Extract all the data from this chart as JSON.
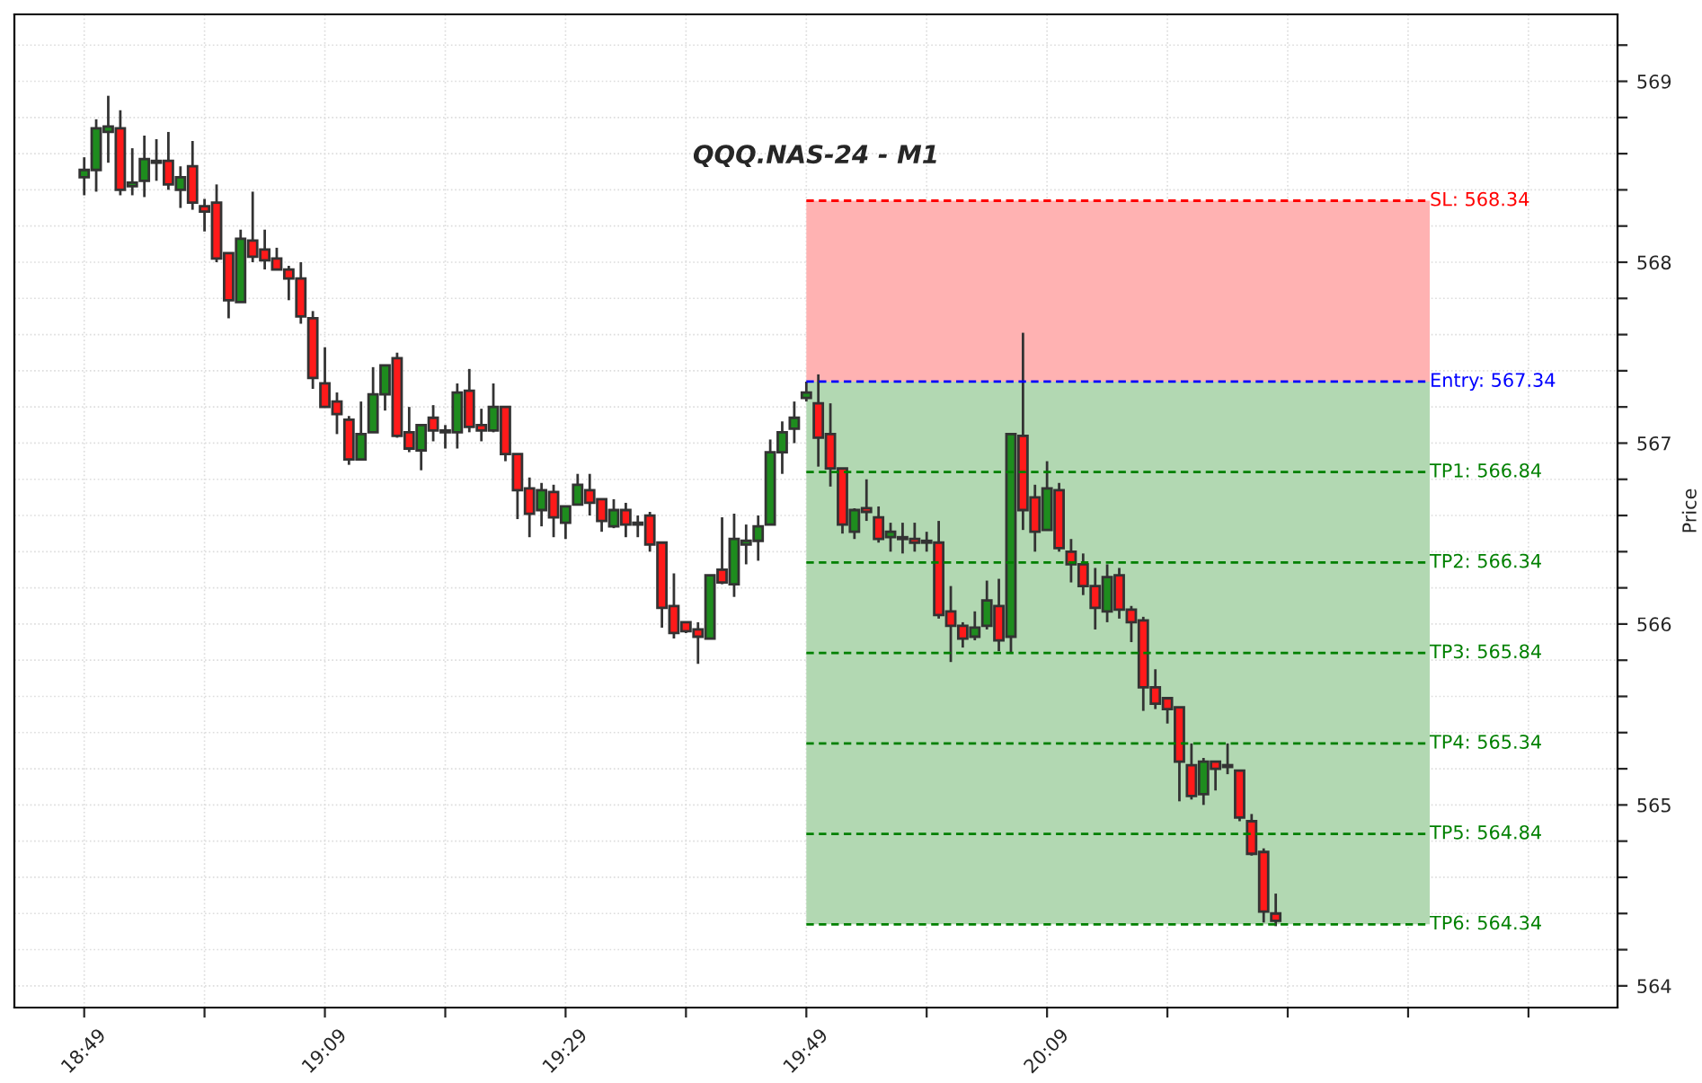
{
  "chart_data": {
    "type": "candlestick",
    "title": "QQQ.NAS-24 - M1",
    "ylabel": "Price",
    "xlim": [
      18.72,
      20.94
    ],
    "ylim": [
      563.88,
      569.37
    ],
    "xticks": [
      {
        "value": 18.8167,
        "label": "18:49"
      },
      {
        "value": 18.9833,
        "label": null
      },
      {
        "value": 19.15,
        "label": "19:09"
      },
      {
        "value": 19.3167,
        "label": null
      },
      {
        "value": 19.4833,
        "label": "19:29"
      },
      {
        "value": 19.65,
        "label": null
      },
      {
        "value": 19.8167,
        "label": "19:49"
      },
      {
        "value": 19.9833,
        "label": null
      },
      {
        "value": 20.15,
        "label": "20:09"
      },
      {
        "value": 20.3167,
        "label": null
      },
      {
        "value": 20.4833,
        "label": null
      },
      {
        "value": 20.65,
        "label": null
      },
      {
        "value": 20.8167,
        "label": null
      }
    ],
    "yticks": [
      564,
      {
        "value": 564.2,
        "label": null
      },
      {
        "value": 564.4,
        "label": null
      },
      {
        "value": 564.6,
        "label": null
      },
      {
        "value": 564.8,
        "label": null
      },
      565,
      {
        "value": 565.2,
        "label": null
      },
      {
        "value": 565.4,
        "label": null
      },
      {
        "value": 565.6,
        "label": null
      },
      {
        "value": 565.8,
        "label": null
      },
      566,
      {
        "value": 566.2,
        "label": null
      },
      {
        "value": 566.4,
        "label": null
      },
      {
        "value": 566.6,
        "label": null
      },
      {
        "value": 566.8,
        "label": null
      },
      567,
      {
        "value": 567.2,
        "label": null
      },
      {
        "value": 567.4,
        "label": null
      },
      {
        "value": 567.6,
        "label": null
      },
      {
        "value": 567.8,
        "label": null
      },
      568,
      {
        "value": 568.2,
        "label": null
      },
      {
        "value": 568.4,
        "label": null
      },
      {
        "value": 568.6,
        "label": null
      },
      {
        "value": 568.8,
        "label": null
      },
      569,
      {
        "value": 569.2,
        "label": null
      }
    ],
    "grid": true,
    "bands": [
      {
        "axis": "y",
        "from": 567.34,
        "to": 568.34,
        "color": "#ffb2b2"
      },
      {
        "axis": "y",
        "from": 564.34,
        "to": 567.34,
        "color": "#b2d8b2"
      }
    ],
    "series": [
      {
        "color": "#1e8c1e",
        "x": [
          18.8167,
          18.8333,
          18.85,
          18.8833,
          18.9,
          18.9167,
          18.95,
          19.0333,
          19.2,
          19.2167,
          19.2333,
          19.2833,
          19.3167,
          19.3333,
          19.3833,
          19.45,
          19.4833,
          19.5,
          19.55,
          19.6833,
          19.7167,
          19.7333,
          19.75,
          19.7667,
          19.7833,
          19.8,
          19.8167,
          19.8833,
          19.9333,
          20.05,
          20.0667,
          20.1,
          20.15,
          20.2333,
          20.3667
        ],
        "ohlc": [
          [
            568.47,
            568.58,
            568.37,
            568.51
          ],
          [
            568.51,
            568.79,
            568.39,
            568.74
          ],
          [
            568.72,
            568.92,
            568.55,
            568.75
          ],
          [
            568.42,
            568.63,
            568.37,
            568.44
          ],
          [
            568.45,
            568.7,
            568.36,
            568.57
          ],
          [
            568.55,
            568.68,
            568.45,
            568.56
          ],
          [
            568.4,
            568.53,
            568.3,
            568.47
          ],
          [
            567.78,
            568.18,
            567.78,
            568.13
          ],
          [
            566.91,
            567.23,
            566.91,
            567.05
          ],
          [
            567.06,
            567.42,
            567.06,
            567.27
          ],
          [
            567.27,
            567.43,
            567.18,
            567.43
          ],
          [
            566.96,
            567.1,
            566.85,
            567.1
          ],
          [
            567.06,
            567.1,
            566.97,
            567.07
          ],
          [
            567.06,
            567.33,
            566.97,
            567.28
          ],
          [
            567.07,
            567.33,
            567.06,
            567.2
          ],
          [
            566.63,
            566.78,
            566.54,
            566.74
          ],
          [
            566.56,
            566.65,
            566.47,
            566.65
          ],
          [
            566.66,
            566.83,
            566.66,
            566.77
          ],
          [
            566.54,
            566.69,
            566.53,
            566.63
          ],
          [
            565.92,
            566.27,
            565.92,
            566.27
          ],
          [
            566.22,
            566.61,
            566.15,
            566.47
          ],
          [
            566.44,
            566.55,
            566.33,
            566.46
          ],
          [
            566.46,
            566.6,
            566.35,
            566.54
          ],
          [
            566.55,
            567.02,
            566.55,
            566.95
          ],
          [
            566.95,
            567.12,
            566.83,
            567.06
          ],
          [
            567.08,
            567.23,
            567.0,
            567.14
          ],
          [
            567.25,
            567.34,
            567.23,
            567.28
          ],
          [
            566.51,
            566.64,
            566.47,
            566.63
          ],
          [
            566.48,
            566.56,
            566.4,
            566.51
          ],
          [
            565.93,
            566.07,
            565.91,
            565.98
          ],
          [
            565.99,
            566.24,
            565.97,
            566.13
          ],
          [
            565.93,
            567.05,
            565.84,
            567.05
          ],
          [
            566.52,
            566.9,
            566.52,
            566.75
          ],
          [
            566.07,
            566.33,
            566.01,
            566.26
          ],
          [
            565.06,
            565.26,
            565.0,
            565.24
          ]
        ]
      },
      {
        "color": "#ff1a1a",
        "x": [
          18.8667,
          18.9333,
          18.9667,
          18.9833,
          19,
          19.0167,
          19.05,
          19.0667,
          19.0833,
          19.1,
          19.1167,
          19.1333,
          19.15,
          19.1667,
          19.1833,
          19.25,
          19.2667,
          19.3,
          19.35,
          19.3667,
          19.4,
          19.4167,
          19.4333,
          19.4667,
          19.5167,
          19.5333,
          19.5667,
          19.5833,
          19.6,
          19.6167,
          19.6333,
          19.65,
          19.6667,
          19.7,
          19.8333,
          19.85,
          19.8667,
          19.9,
          19.9167,
          19.95,
          19.9667,
          19.9833,
          20,
          20.0167,
          20.0333,
          20.0833,
          20.1167,
          20.1333,
          20.1667,
          20.1833,
          20.2,
          20.2167,
          20.25,
          20.2667,
          20.2833,
          20.3,
          20.3167,
          20.3333,
          20.35,
          20.3833,
          20.4,
          20.4167,
          20.4333,
          20.45,
          20.4667
        ],
        "ohlc": [
          [
            568.74,
            568.84,
            568.37,
            568.4
          ],
          [
            568.56,
            568.72,
            568.4,
            568.43
          ],
          [
            568.53,
            568.67,
            568.29,
            568.33
          ],
          [
            568.31,
            568.35,
            568.17,
            568.28
          ],
          [
            568.33,
            568.43,
            568.0,
            568.02
          ],
          [
            568.05,
            568.05,
            567.69,
            567.79
          ],
          [
            568.12,
            568.39,
            568.0,
            568.03
          ],
          [
            568.07,
            568.18,
            567.96,
            568.01
          ],
          [
            568.02,
            568.08,
            567.96,
            567.96
          ],
          [
            567.96,
            567.98,
            567.79,
            567.91
          ],
          [
            567.91,
            568.0,
            567.66,
            567.7
          ],
          [
            567.69,
            567.73,
            567.3,
            567.36
          ],
          [
            567.33,
            567.53,
            567.2,
            567.2
          ],
          [
            567.23,
            567.28,
            567.05,
            567.16
          ],
          [
            567.13,
            567.15,
            566.88,
            566.91
          ],
          [
            567.47,
            567.5,
            567.03,
            567.04
          ],
          [
            567.06,
            567.2,
            566.95,
            566.97
          ],
          [
            567.14,
            567.21,
            567.01,
            567.07
          ],
          [
            567.29,
            567.41,
            567.06,
            567.09
          ],
          [
            567.1,
            567.19,
            567.01,
            567.07
          ],
          [
            567.2,
            567.2,
            566.9,
            566.94
          ],
          [
            566.94,
            566.94,
            566.58,
            566.74
          ],
          [
            566.75,
            566.81,
            566.48,
            566.61
          ],
          [
            566.73,
            566.77,
            566.48,
            566.59
          ],
          [
            566.74,
            566.83,
            566.6,
            566.67
          ],
          [
            566.69,
            566.69,
            566.51,
            566.57
          ],
          [
            566.63,
            566.67,
            566.48,
            566.55
          ],
          [
            566.56,
            566.6,
            566.48,
            566.55
          ],
          [
            566.6,
            566.62,
            566.4,
            566.44
          ],
          [
            566.45,
            566.45,
            565.98,
            566.09
          ],
          [
            566.1,
            566.28,
            565.92,
            565.95
          ],
          [
            566.01,
            566.01,
            565.95,
            565.96
          ],
          [
            565.97,
            566.01,
            565.78,
            565.93
          ],
          [
            566.3,
            566.59,
            566.22,
            566.23
          ],
          [
            567.22,
            567.38,
            566.87,
            567.03
          ],
          [
            567.05,
            567.22,
            566.76,
            566.86
          ],
          [
            566.86,
            566.86,
            566.5,
            566.55
          ],
          [
            566.64,
            566.8,
            566.57,
            566.62
          ],
          [
            566.59,
            566.65,
            566.45,
            566.47
          ],
          [
            566.48,
            566.56,
            566.39,
            566.47
          ],
          [
            566.47,
            566.56,
            566.4,
            566.45
          ],
          [
            566.46,
            566.51,
            566.4,
            566.45
          ],
          [
            566.45,
            566.57,
            566.03,
            566.05
          ],
          [
            566.07,
            566.21,
            565.79,
            565.99
          ],
          [
            565.99,
            566.01,
            565.87,
            565.92
          ],
          [
            566.1,
            566.25,
            565.85,
            565.91
          ],
          [
            567.04,
            567.61,
            566.52,
            566.63
          ],
          [
            566.7,
            566.77,
            566.4,
            566.51
          ],
          [
            566.74,
            566.78,
            566.4,
            566.42
          ],
          [
            566.4,
            566.47,
            566.23,
            566.33
          ],
          [
            566.33,
            566.39,
            566.16,
            566.21
          ],
          [
            566.21,
            566.31,
            565.97,
            566.09
          ],
          [
            566.27,
            566.31,
            566.03,
            566.08
          ],
          [
            566.08,
            566.1,
            565.9,
            566.01
          ],
          [
            566.02,
            566.04,
            565.52,
            565.65
          ],
          [
            565.65,
            565.75,
            565.53,
            565.56
          ],
          [
            565.59,
            565.59,
            565.45,
            565.53
          ],
          [
            565.54,
            565.54,
            565.02,
            565.24
          ],
          [
            565.22,
            565.34,
            565.03,
            565.05
          ],
          [
            565.24,
            565.24,
            565.08,
            565.2
          ],
          [
            565.22,
            565.34,
            565.17,
            565.21
          ],
          [
            565.19,
            565.19,
            564.91,
            564.93
          ],
          [
            564.91,
            564.95,
            564.72,
            564.73
          ],
          [
            564.74,
            564.76,
            564.35,
            564.41
          ],
          [
            564.4,
            564.51,
            564.33,
            564.36
          ]
        ]
      },
      {
        "type": "line",
        "name": "SL: 568.34",
        "color": "#ff0000",
        "line_style": "dashed",
        "x": [
          19.8167,
          20.68
        ],
        "values": [
          568.34,
          568.34
        ]
      },
      {
        "type": "line",
        "name": "Entry: 567.34",
        "color": "#0000ff",
        "line_style": "dashed",
        "x": [
          19.8167,
          20.68
        ],
        "values": [
          567.34,
          567.34
        ]
      },
      {
        "type": "line",
        "name": "TP1: 566.84",
        "color": "#008000",
        "line_style": "dashed",
        "x": [
          19.8167,
          20.68
        ],
        "values": [
          566.84,
          566.84
        ]
      },
      {
        "type": "line",
        "name": "TP2: 566.34",
        "color": "#008000",
        "line_style": "dashed",
        "x": [
          19.8167,
          20.68
        ],
        "values": [
          566.34,
          566.34
        ]
      },
      {
        "type": "line",
        "name": "TP3: 565.84",
        "color": "#008000",
        "line_style": "dashed",
        "x": [
          19.8167,
          20.68
        ],
        "values": [
          565.84,
          565.84
        ]
      },
      {
        "type": "line",
        "name": "TP4: 565.34",
        "color": "#008000",
        "line_style": "dashed",
        "x": [
          19.8167,
          20.68
        ],
        "values": [
          565.34,
          565.34
        ]
      },
      {
        "type": "line",
        "name": "TP5: 564.84",
        "color": "#008000",
        "line_style": "dashed",
        "x": [
          19.8167,
          20.68
        ],
        "values": [
          564.84,
          564.84
        ]
      },
      {
        "type": "line",
        "name": "TP6: 564.34",
        "color": "#008000",
        "line_style": "dashed",
        "x": [
          19.8167,
          20.68
        ],
        "values": [
          564.34,
          564.34
        ]
      }
    ]
  }
}
